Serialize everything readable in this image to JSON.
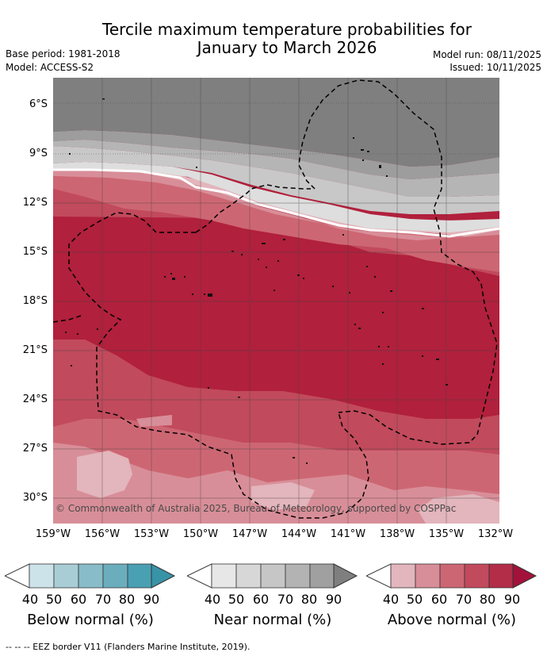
{
  "title": {
    "line1": "Tercile maximum temperature probabilities for",
    "line2": "January to March 2026"
  },
  "meta": {
    "base_period": "Base period: 1981-2018",
    "model": "Model: ACCESS-S2",
    "model_run": "Model run: 08/11/2025",
    "issued": "Issued: 10/11/2025"
  },
  "map": {
    "lat_labels": [
      "6°S",
      "9°S",
      "12°S",
      "15°S",
      "18°S",
      "21°S",
      "24°S",
      "27°S",
      "30°S"
    ],
    "lon_labels": [
      "159°W",
      "156°W",
      "153°W",
      "150°W",
      "147°W",
      "144°W",
      "141°W",
      "138°W",
      "135°W",
      "132°W"
    ],
    "copyright": "© Commonwealth of Australia 2025, Bureau of Meteorology, supported by COSPPac",
    "colors": {
      "near80": "#7f7f7f",
      "near70": "#9d9d9d",
      "near60": "#b5b5b5",
      "near50": "#c8c8c8",
      "near40": "#dedede",
      "above40": "#e3b5bc",
      "above50": "#d88e98",
      "above60": "#cd6673",
      "above70": "#c14a5c",
      "above80": "#b1203c"
    }
  },
  "legend": {
    "below": {
      "title": "Below normal (%)",
      "ticks": [
        "40",
        "50",
        "60",
        "70",
        "80",
        "90"
      ],
      "colors": [
        "#cce3ea",
        "#a9cdd5",
        "#88bcc8",
        "#6aaebe",
        "#4aa0b3",
        "#3893a6"
      ]
    },
    "near": {
      "title": "Near normal (%)",
      "ticks": [
        "40",
        "50",
        "60",
        "70",
        "80",
        "90"
      ],
      "colors": [
        "#e7e7e7",
        "#d7d7d7",
        "#c6c6c6",
        "#b3b3b3",
        "#a0a0a0",
        "#7f7f7f"
      ]
    },
    "above": {
      "title": "Above normal (%)",
      "ticks": [
        "40",
        "50",
        "60",
        "70",
        "80",
        "90"
      ],
      "colors": [
        "#e3b5bc",
        "#d88e98",
        "#cd6673",
        "#c14a5c",
        "#b32d49",
        "#a3123a"
      ]
    }
  },
  "footer": "--  --  -- EEZ border V11 (Flanders Marine Institute, 2019)."
}
